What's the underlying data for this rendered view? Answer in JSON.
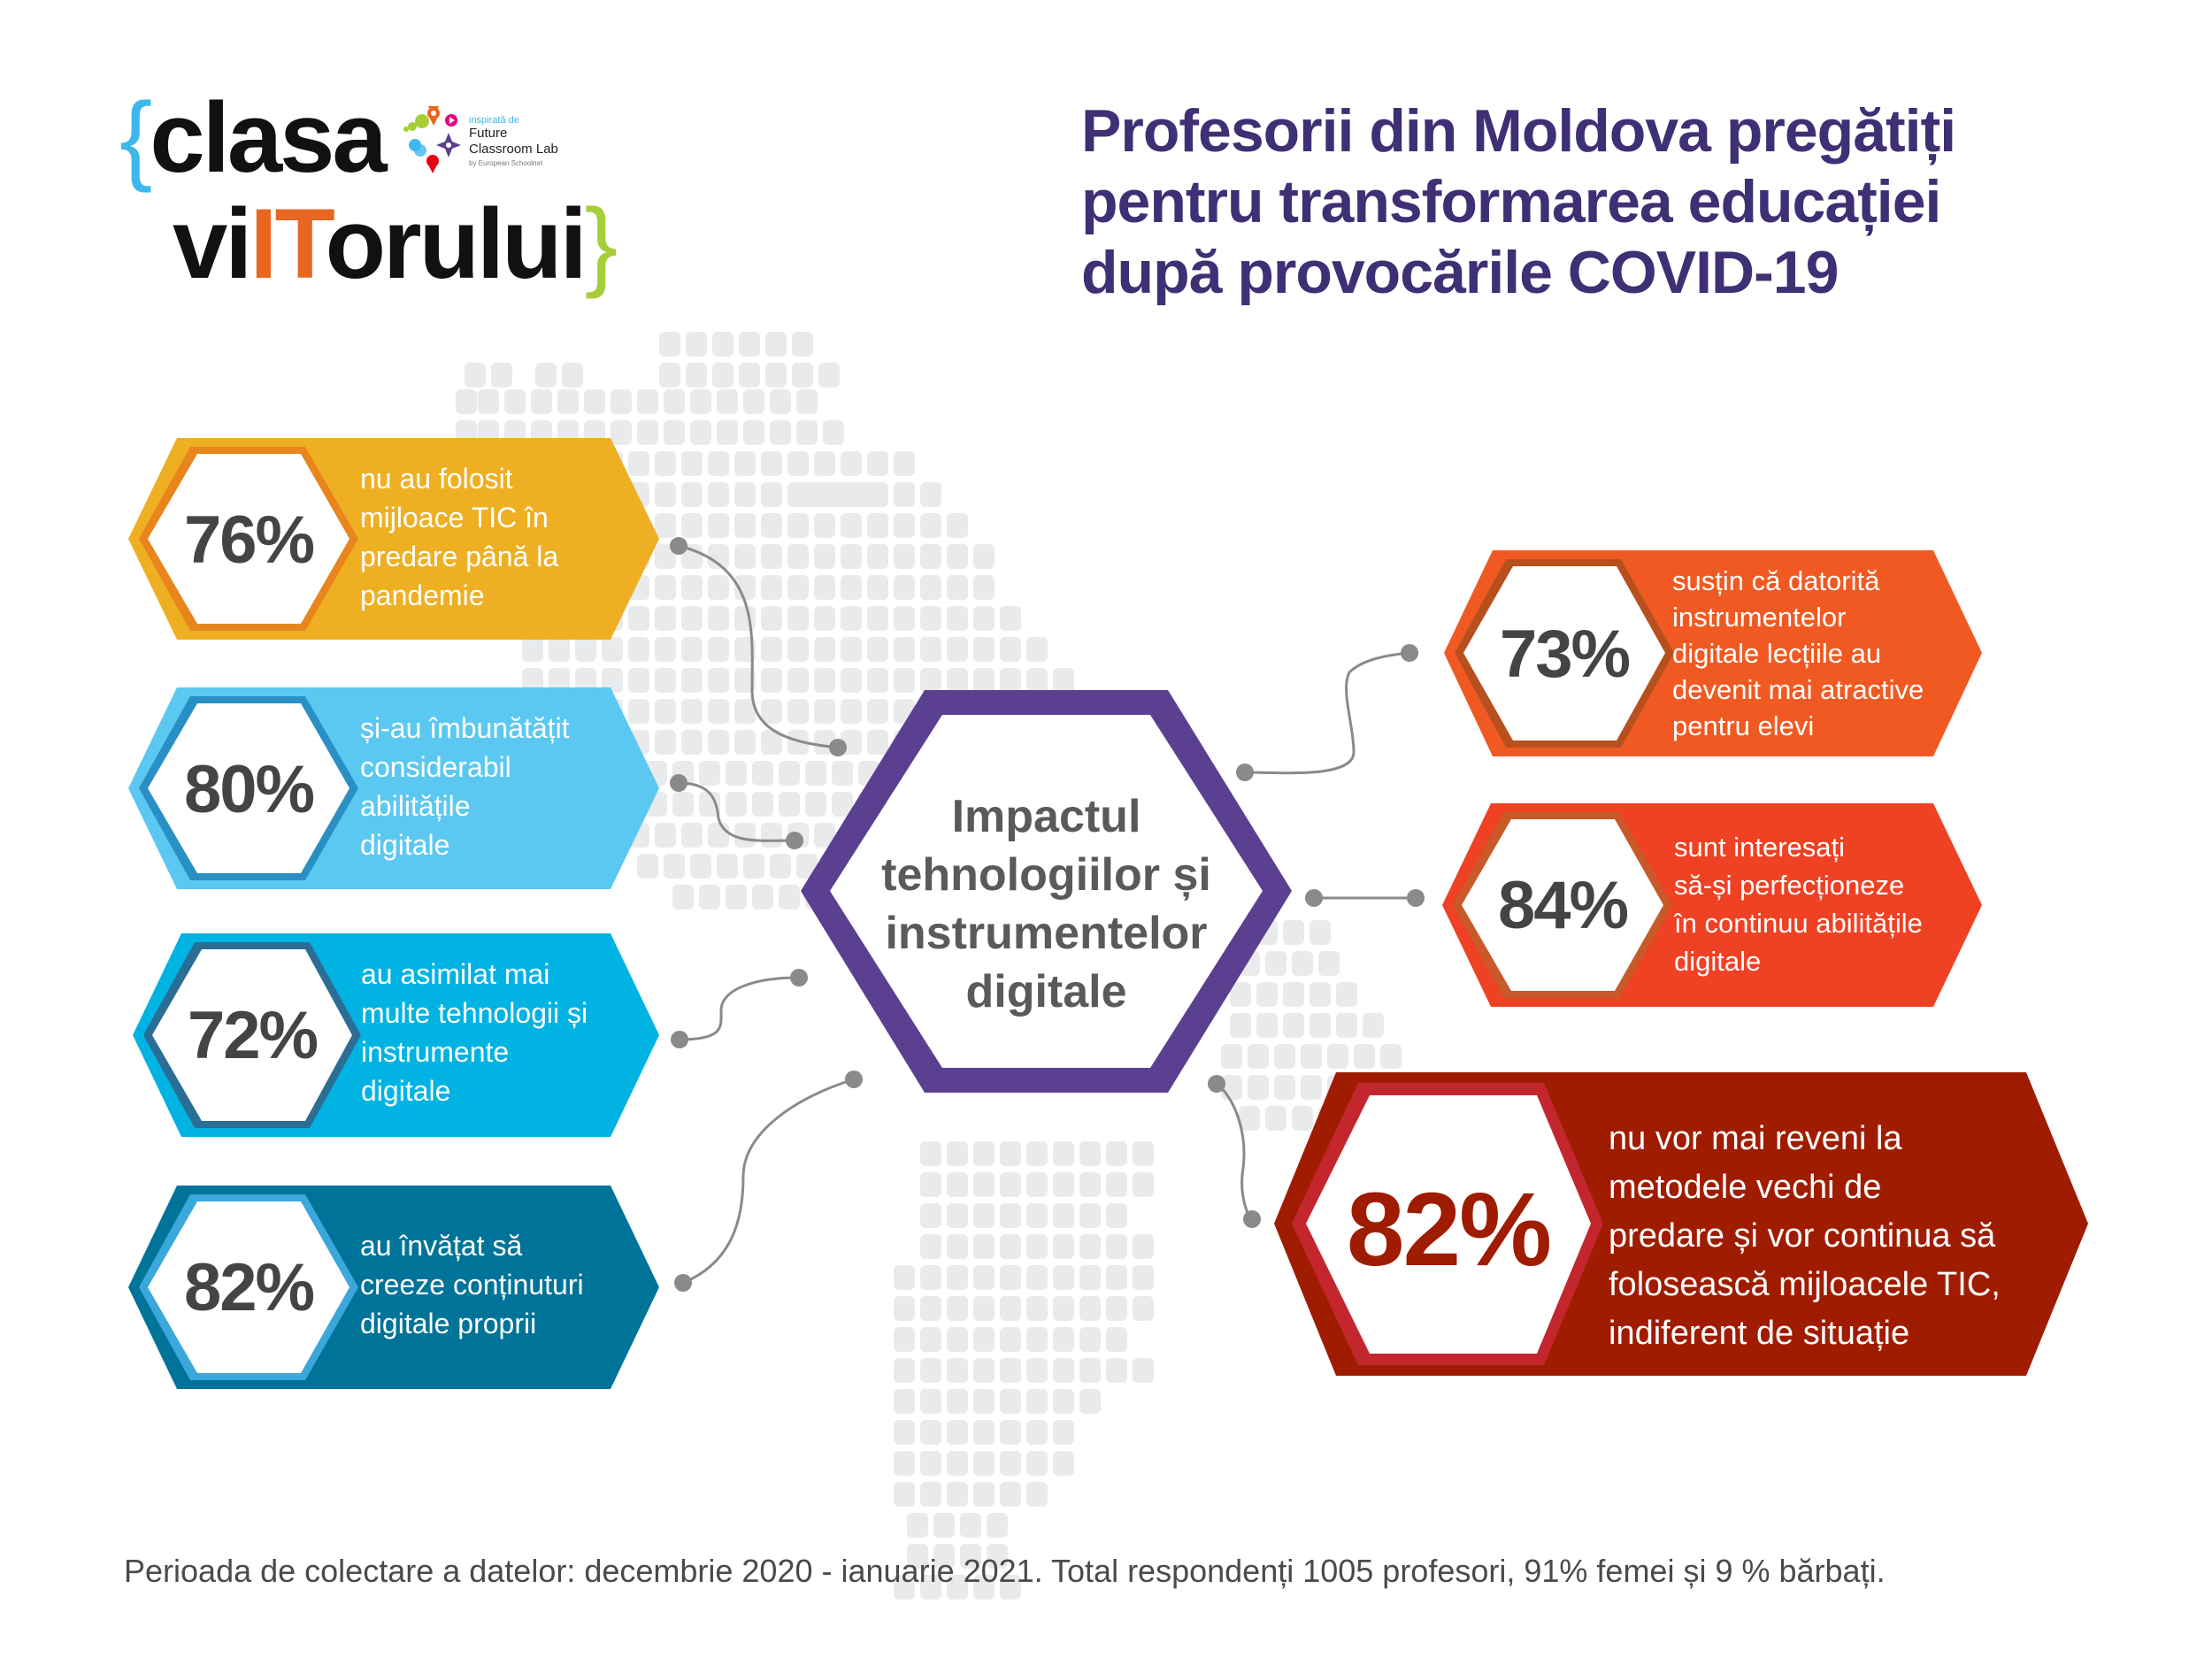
{
  "logo": {
    "brace_open": "{",
    "line1": "clasa",
    "line2_prefix": "vi",
    "line2_highlight": "IT",
    "line2_suffix": "orului",
    "brace_close": "}",
    "partner": {
      "inspired_by": "inspirată de",
      "name_line1": "Future",
      "name_line2": "Classroom Lab",
      "by": "by European Schoolnet"
    }
  },
  "title": {
    "line1": "Profesorii din Moldova pregătiți",
    "line2": "pentru transformarea educației",
    "line3": "după provocările COVID-19"
  },
  "center": {
    "line1": "Impactul",
    "line2": "tehnologiilor și",
    "line3": "instrumentelor",
    "line4": "digitale"
  },
  "left_cards": [
    {
      "percent": "76%",
      "color": "#EEB022",
      "ring": "#E8851C",
      "lines": [
        "nu au folosit",
        "mijloace TIC în",
        "predare până la",
        "pandemie"
      ]
    },
    {
      "percent": "80%",
      "color": "#5BC8F1",
      "ring": "#2A8FC4",
      "lines": [
        "și-au îmbunătățit",
        "considerabil",
        "abilitățile",
        "digitale"
      ]
    },
    {
      "percent": "72%",
      "color": "#00B3E3",
      "ring": "#2B6E95",
      "lines": [
        "au asimilat mai",
        "multe tehnologii și",
        "instrumente",
        "digitale"
      ]
    },
    {
      "percent": "82%",
      "color": "#007399",
      "ring": "#3BA7DB",
      "lines": [
        "au învățat să",
        "creeze conținuturi",
        "digitale proprii"
      ]
    }
  ],
  "right_cards": [
    {
      "percent": "73%",
      "color": "#F05A22",
      "ring": "#B8501E",
      "lines": [
        "susțin că datorită",
        "instrumentelor",
        "digitale lecțiile au",
        "devenit mai atractive",
        "pentru elevi"
      ]
    },
    {
      "percent": "84%",
      "color": "#EF4123",
      "ring": "#C85A2A",
      "lines": [
        "sunt interesați",
        "să-și perfecționeze",
        "în continuu abilitățile",
        "digitale"
      ]
    },
    {
      "percent": "82%",
      "color": "#A01C00",
      "ring": "#C4262E",
      "percent_color": "#A01C00",
      "lines": [
        "nu vor mai reveni la",
        "metodele vechi de",
        "predare și vor continua să",
        "folosească mijloacele TIC,",
        "indiferent de situație"
      ]
    }
  ],
  "colors": {
    "title": "#3F2F74",
    "center_border": "#5B3F91",
    "connector": "#8A8A8A",
    "map_dot": "#E3E5E8"
  },
  "footer": {
    "text": "Perioada de colectare a datelor: decembrie 2020 - ianuarie 2021. Total respondenți 1005 profesori, 91% femei și 9 % bărbați."
  }
}
